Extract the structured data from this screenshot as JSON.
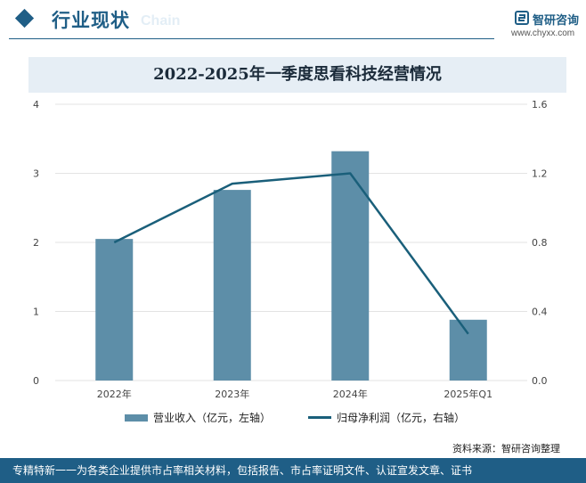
{
  "header": {
    "title": "行业现状",
    "ghost_text": "Chain"
  },
  "brand": {
    "name": "智研咨询",
    "site": "www.chyxx.com"
  },
  "chart_data": {
    "type": "bar",
    "title": "2022-2025年一季度思看科技经营情况",
    "categories": [
      "2022年",
      "2023年",
      "2024年",
      "2025年Q1"
    ],
    "series": [
      {
        "name": "营业收入（亿元，左轴）",
        "kind": "bar",
        "axis": "left",
        "color": "#5d8ea8",
        "values": [
          2.05,
          2.76,
          3.32,
          0.88
        ]
      },
      {
        "name": "归母净利润（亿元，右轴）",
        "kind": "line",
        "axis": "right",
        "color": "#1a5f7a",
        "values": [
          0.8,
          1.14,
          1.2,
          0.27
        ]
      }
    ],
    "left_axis": {
      "ylim": [
        0,
        4
      ],
      "ticks": [
        "0",
        "1",
        "2",
        "3",
        "4"
      ]
    },
    "right_axis": {
      "ylim": [
        0,
        1.6
      ],
      "ticks": [
        "0.0",
        "0.4",
        "0.8",
        "1.2",
        "1.6"
      ]
    },
    "grid": true,
    "legend_position": "bottom"
  },
  "source": "资料来源：智研咨询整理",
  "footer": "专精特新一一为各类企业提供市占率相关材料，包括报告、市占率证明文件、认证宣发文章、证书"
}
